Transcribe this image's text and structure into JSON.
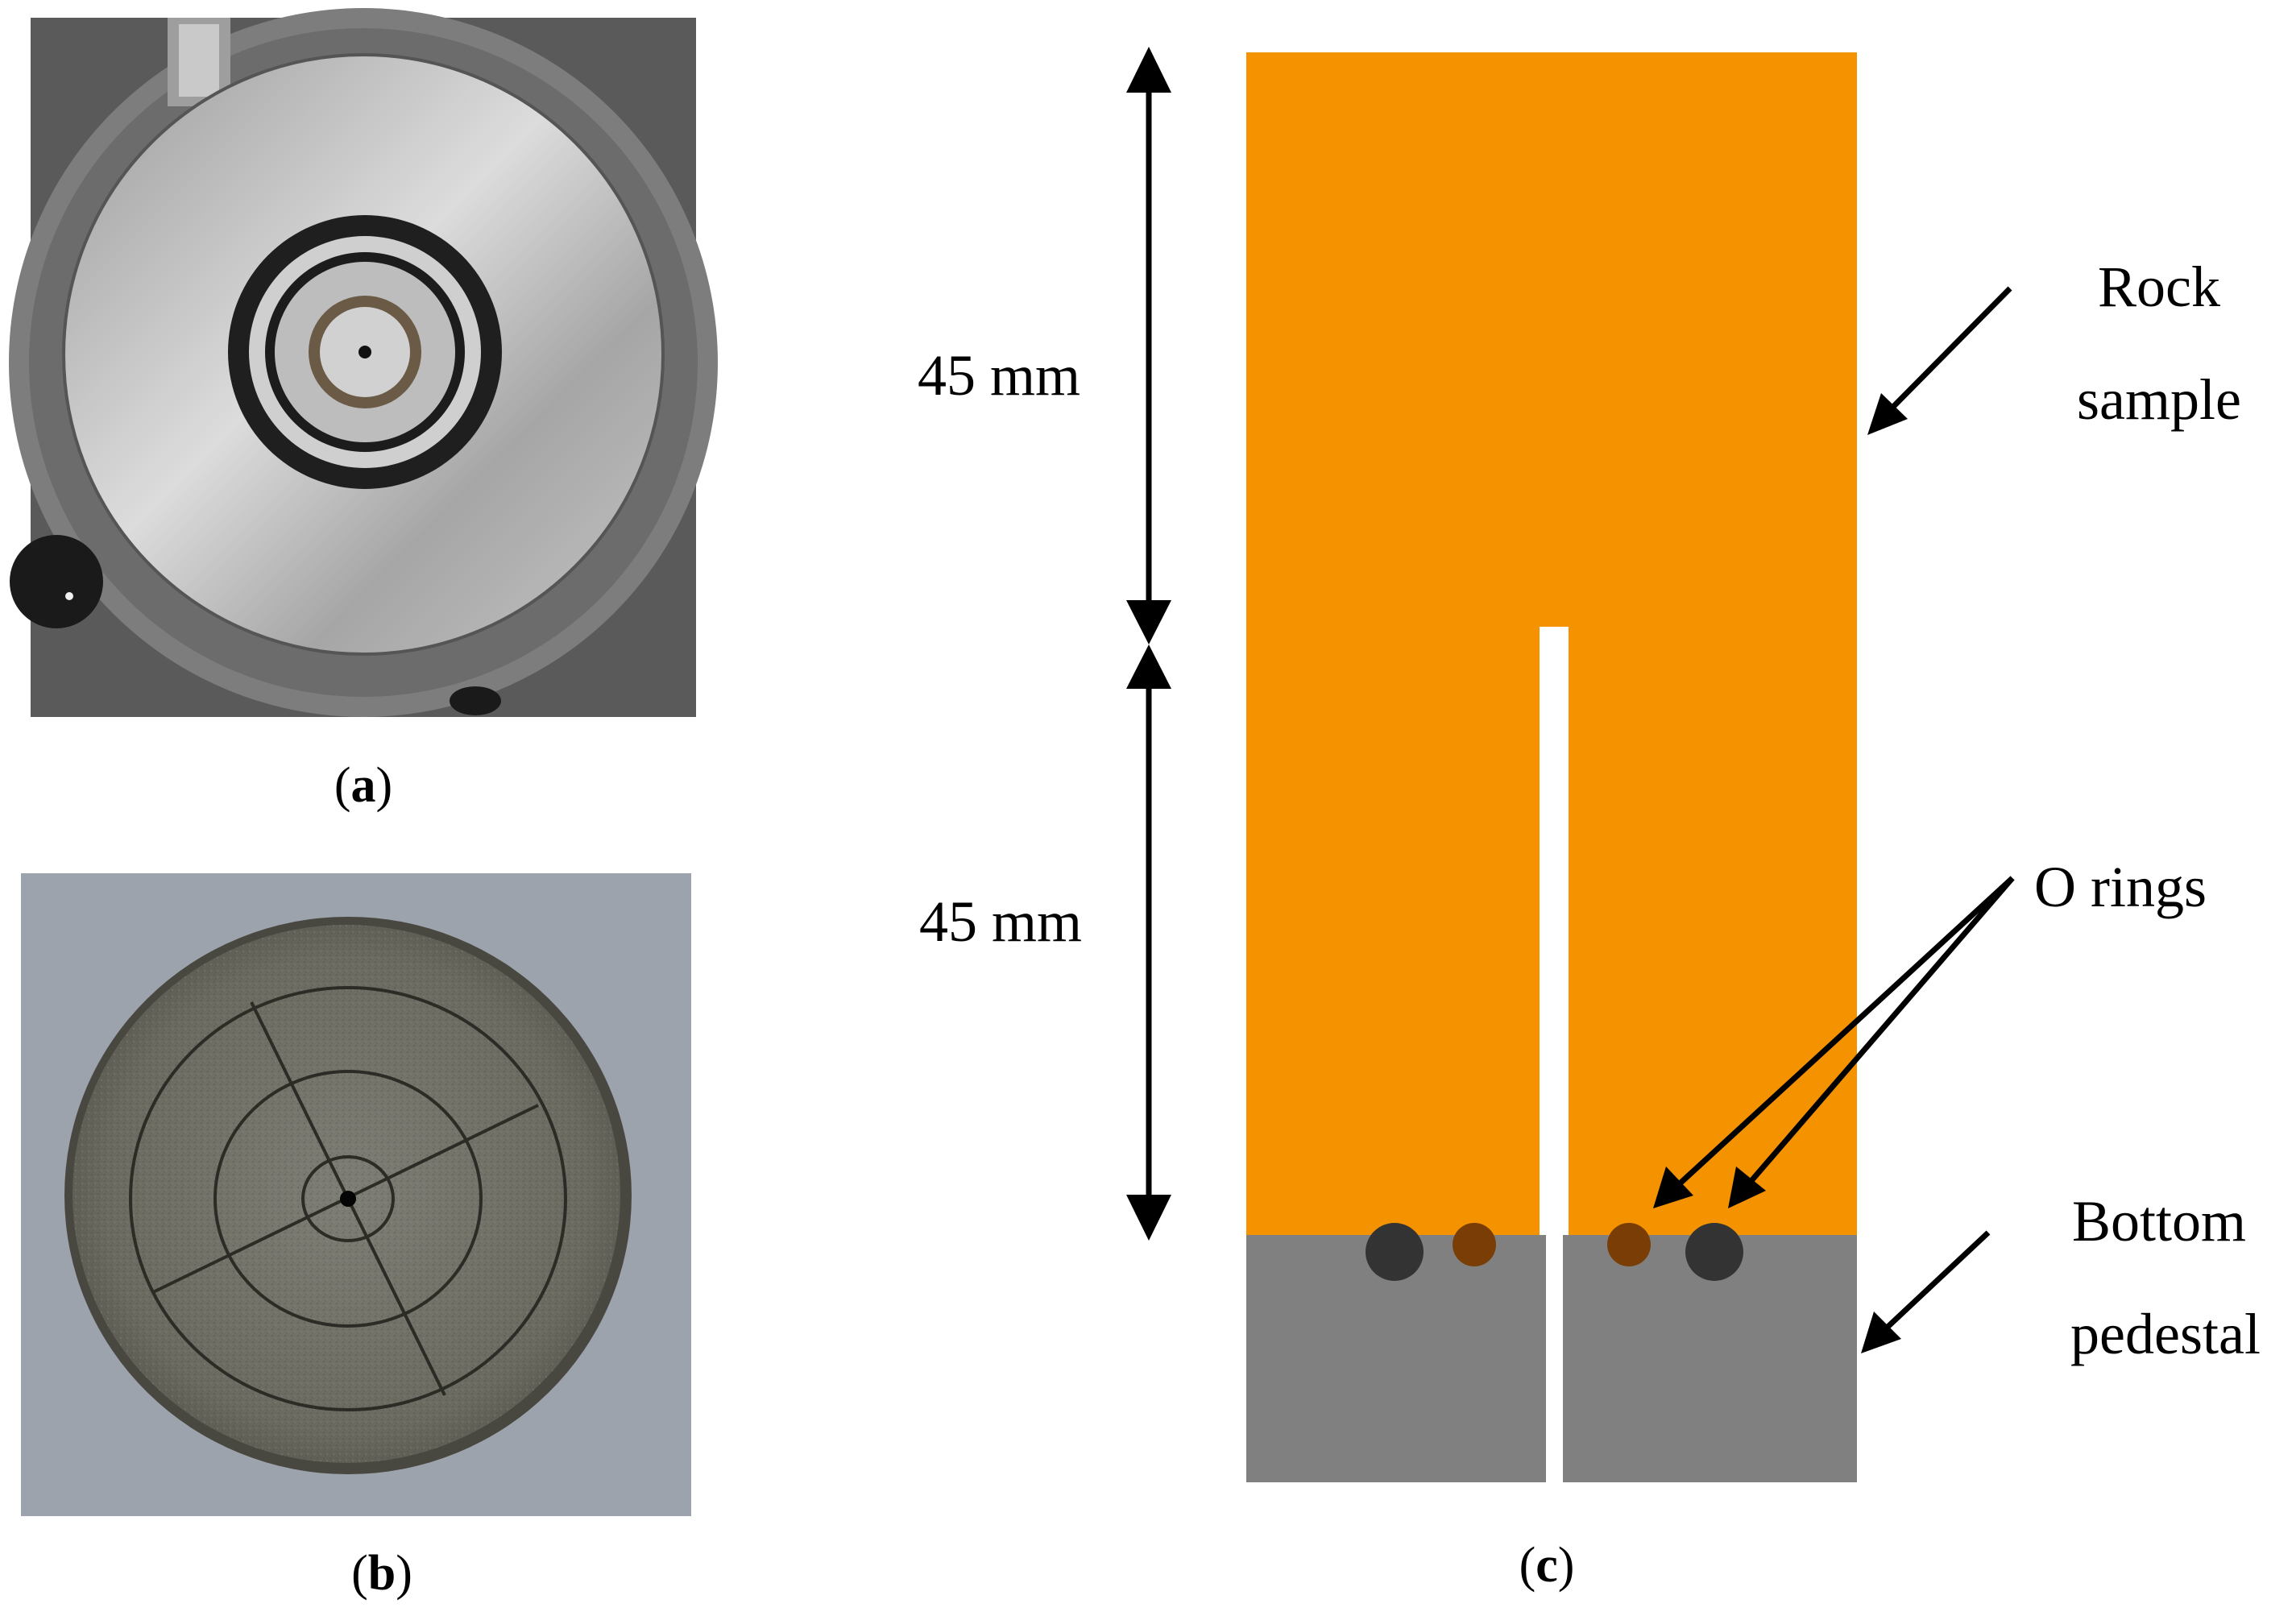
{
  "panels": {
    "a": {
      "caption_prefix": "(",
      "caption_letter": "a",
      "caption_suffix": ")"
    },
    "b": {
      "caption_prefix": "(",
      "caption_letter": "b",
      "caption_suffix": ")"
    },
    "c": {
      "caption_prefix": "(",
      "caption_letter": "c",
      "caption_suffix": ")",
      "dim_upper": "45 mm",
      "dim_lower": "45 mm",
      "label_rock_line1": "Rock",
      "label_rock_line2": "sample",
      "label_orings": "O rings",
      "label_pedestal_line1": "Bottom",
      "label_pedestal_line2": "pedestal"
    }
  },
  "colors": {
    "rock": "#f59200",
    "pedestal": "#808080",
    "oring_outer": "#333333",
    "oring_inner": "#7a3d05",
    "arrow": "#000000"
  }
}
